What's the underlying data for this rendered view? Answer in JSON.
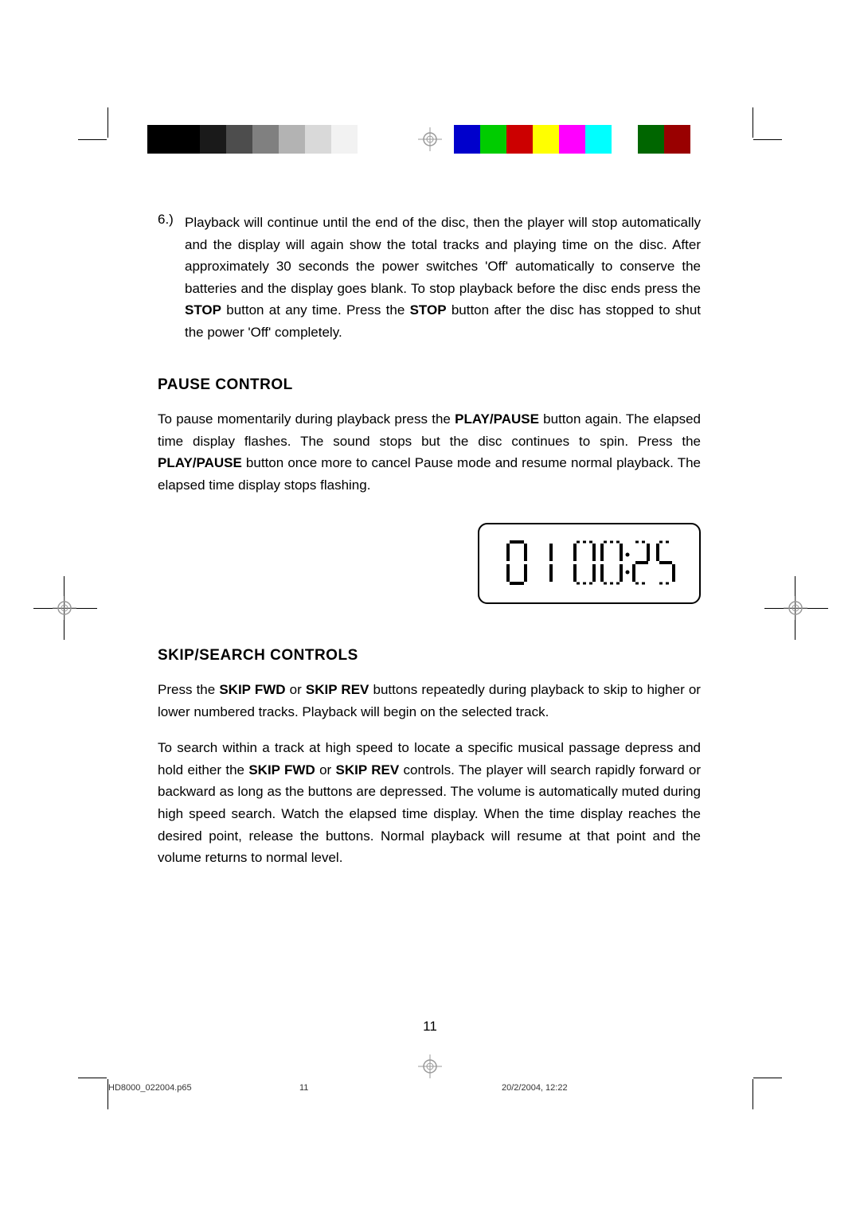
{
  "colorbars": {
    "grays": [
      "#000000",
      "#000000",
      "#1a1a1a",
      "#4d4d4d",
      "#808080",
      "#b3b3b3",
      "#d9d9d9",
      "#f2f2f2",
      "#ffffff"
    ],
    "colors": [
      "#0000cc",
      "#00cc00",
      "#cc0000",
      "#ffff00",
      "#ff00ff",
      "#00ffff",
      "#ffffff",
      "#006600",
      "#990000"
    ]
  },
  "sections": {
    "item6": {
      "number": "6.)",
      "text_parts": [
        "Playback will continue until the end of the disc, then the player will stop automatically and the display will again show the total tracks and playing time on the disc. After approximately 30 seconds the power switches 'Off' automatically to conserve the batteries and the display goes blank. To stop playback before the disc ends press the ",
        "STOP",
        " button at any time. Press the ",
        "STOP",
        " button after the disc has stopped to shut the power 'Off' completely."
      ]
    },
    "pause": {
      "title": "PAUSE CONTROL",
      "text_parts": [
        "To pause momentarily during playback press the ",
        "PLAY/PAUSE",
        " button again. The elapsed time display flashes. The sound stops but the disc continues to spin. Press the ",
        "PLAY/PAUSE",
        " button once more to cancel Pause mode and resume normal playback. The elapsed time display stops flashing."
      ]
    },
    "skip": {
      "title": "SKIP/SEARCH CONTROLS",
      "p1_parts": [
        "Press the ",
        "SKIP FWD",
        " or ",
        "SKIP REV",
        " buttons repeatedly during playback to skip to higher or lower numbered tracks. Playback will begin on the selected track."
      ],
      "p2_parts": [
        "To search within a track at high speed to locate a specific musical passage depress and hold either the ",
        "SKIP FWD",
        " or ",
        "SKIP REV",
        " controls. The player will search rapidly forward or backward as long as the buttons are depressed. The volume is automatically muted during high speed search. Watch the elapsed time display. When the time display reaches the desired point, release the buttons. Normal playback will resume at that point and the volume returns to normal level."
      ]
    }
  },
  "lcd": {
    "text": "0 1 00:25"
  },
  "page_number": "11",
  "footer": {
    "file": "HD8000_022004.p65",
    "page": "11",
    "date": "20/2/2004, 12:22"
  }
}
